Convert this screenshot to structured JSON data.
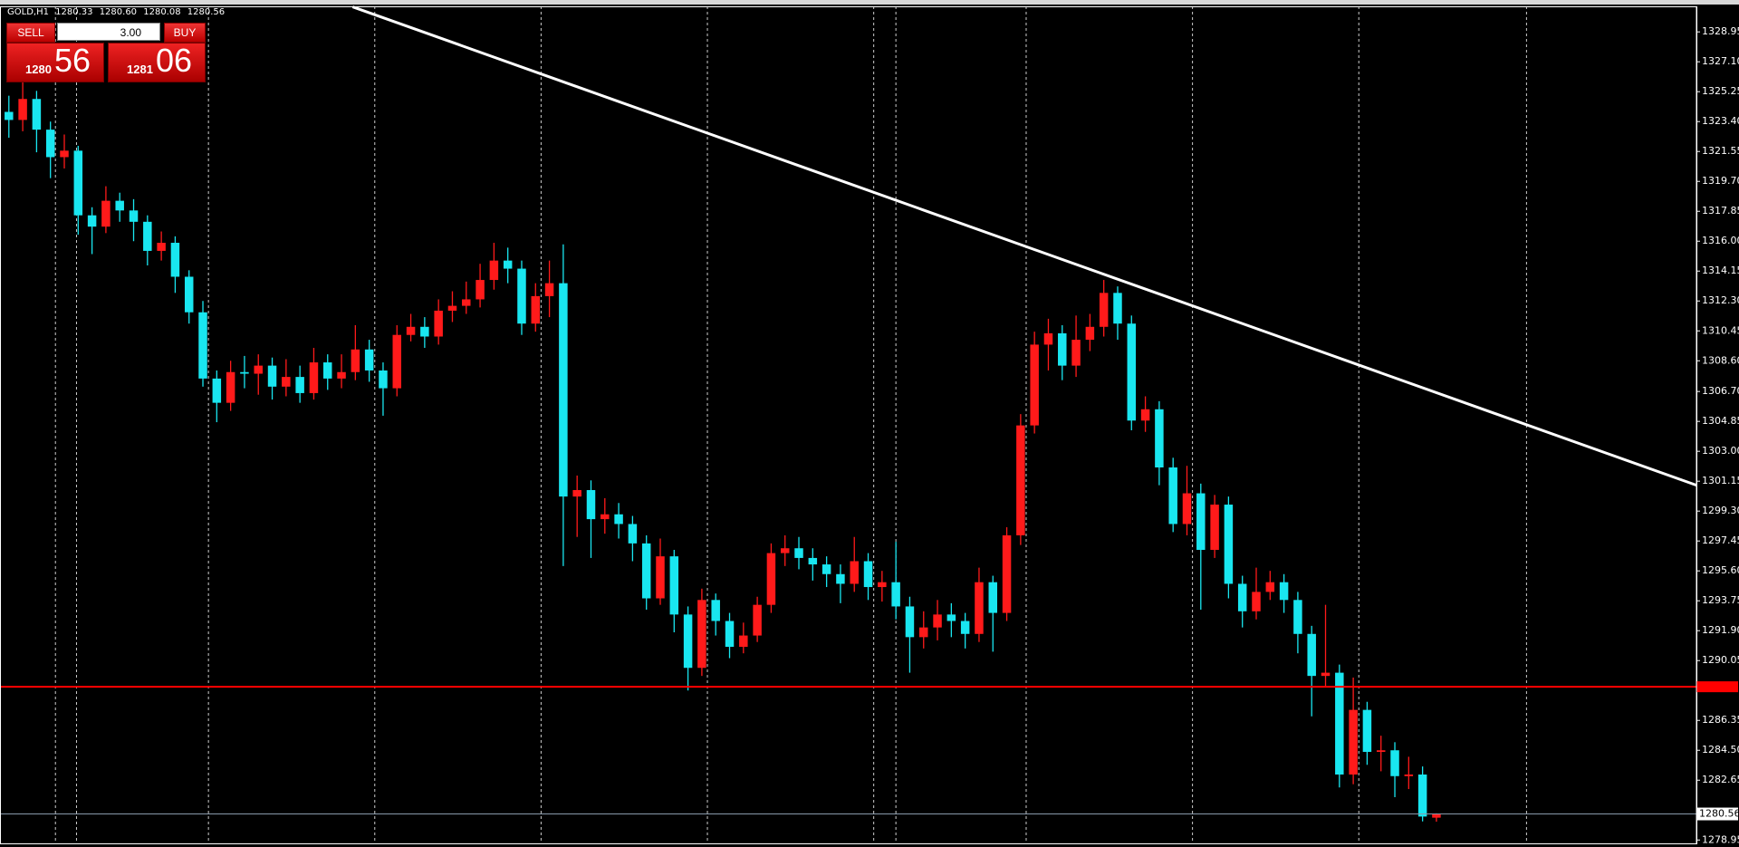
{
  "chart_data": {
    "type": "candlestick",
    "symbol": "GOLD,H1",
    "ohlc_text": [
      "1280.33",
      "1280.60",
      "1280.08",
      "1280.56"
    ],
    "trade_panel": {
      "sell": "SELL",
      "buy": "BUY",
      "lots": "3.00",
      "bid_big": "1280",
      "bid_small": "56",
      "ask_big": "1281",
      "ask_small": "06"
    },
    "up_color": "#ff1a1a",
    "down_color": "#19e6f0",
    "xlim": [
      -0.64,
      121.76
    ],
    "ylim": [
      1278.74,
      1330.53
    ],
    "yticks": [
      1328.95,
      {
        "value": 1327.1,
        "label": "1327.10"
      },
      1325.25,
      {
        "value": 1323.4,
        "label": "1323.40"
      },
      1321.55,
      {
        "value": 1319.7,
        "label": "1319.70"
      },
      1317.85,
      {
        "value": 1316,
        "label": "1316.00"
      },
      1314.15,
      {
        "value": 1312.3,
        "label": "1312.30"
      },
      1310.45,
      {
        "value": 1308.6,
        "label": "1308.60"
      },
      {
        "value": 1306.7,
        "label": "1306.70"
      },
      1304.85,
      {
        "value": 1303,
        "label": "1303.00"
      },
      1301.15,
      {
        "value": 1299.3,
        "label": "1299.30"
      },
      1297.45,
      {
        "value": 1295.6,
        "label": "1295.60"
      },
      1293.75,
      {
        "value": 1291.9,
        "label": "1291.90"
      },
      1290.05,
      1286.35,
      {
        "value": 1284.5,
        "label": "1284.50"
      },
      1282.65,
      1278.95
    ],
    "separators": [
      3.36,
      4.88,
      14.4,
      26.4,
      38.4,
      50.4,
      62.4,
      64.0,
      73.4,
      85.4,
      97.4,
      109.5
    ],
    "trendline": [
      {
        "x": 24.8,
        "y": 1330.5
      },
      {
        "x": 121.76,
        "y": 1300.9
      }
    ],
    "level_line": 1288.43,
    "bid_line": 1280.56,
    "candles": [
      [
        1324.0,
        1325.0,
        1322.4,
        1323.5
      ],
      [
        1323.5,
        1326.1,
        1322.8,
        1324.8
      ],
      [
        1324.8,
        1325.3,
        1321.5,
        1322.9
      ],
      [
        1322.9,
        1323.4,
        1319.9,
        1321.2
      ],
      [
        1321.2,
        1322.6,
        1320.5,
        1321.6
      ],
      [
        1321.6,
        1321.9,
        1316.4,
        1317.6
      ],
      [
        1317.6,
        1318.1,
        1315.2,
        1316.9
      ],
      [
        1316.9,
        1319.4,
        1316.5,
        1318.5
      ],
      [
        1318.5,
        1319.0,
        1317.2,
        1317.9
      ],
      [
        1317.9,
        1318.6,
        1316.0,
        1317.2
      ],
      [
        1317.2,
        1317.6,
        1314.5,
        1315.4
      ],
      [
        1315.4,
        1316.6,
        1314.8,
        1315.9
      ],
      [
        1315.9,
        1316.3,
        1312.8,
        1313.8
      ],
      [
        1313.8,
        1314.2,
        1310.9,
        1311.6
      ],
      [
        1311.6,
        1312.3,
        1307.0,
        1307.5
      ],
      [
        1307.5,
        1308.0,
        1304.8,
        1306.0
      ],
      [
        1306.0,
        1308.6,
        1305.5,
        1307.9
      ],
      [
        1307.9,
        1308.9,
        1306.9,
        1307.8
      ],
      [
        1307.8,
        1309.0,
        1306.5,
        1308.3
      ],
      [
        1308.3,
        1308.8,
        1306.2,
        1307.0
      ],
      [
        1307.0,
        1308.7,
        1306.4,
        1307.6
      ],
      [
        1307.6,
        1308.3,
        1306.0,
        1306.6
      ],
      [
        1306.6,
        1309.4,
        1306.2,
        1308.5
      ],
      [
        1308.5,
        1309.0,
        1306.8,
        1307.5
      ],
      [
        1307.5,
        1309.0,
        1306.9,
        1307.9
      ],
      [
        1307.9,
        1310.8,
        1307.4,
        1309.3
      ],
      [
        1309.3,
        1309.9,
        1307.3,
        1308.0
      ],
      [
        1308.0,
        1308.5,
        1305.2,
        1306.9
      ],
      [
        1306.9,
        1310.8,
        1306.4,
        1310.2
      ],
      [
        1310.2,
        1311.5,
        1309.8,
        1310.7
      ],
      [
        1310.7,
        1311.3,
        1309.4,
        1310.1
      ],
      [
        1310.1,
        1312.4,
        1309.6,
        1311.7
      ],
      [
        1311.7,
        1312.9,
        1311.0,
        1312.0
      ],
      [
        1312.0,
        1313.5,
        1311.5,
        1312.4
      ],
      [
        1312.4,
        1314.6,
        1311.9,
        1313.6
      ],
      [
        1313.6,
        1315.9,
        1313.0,
        1314.8
      ],
      [
        1314.8,
        1315.6,
        1313.4,
        1314.3
      ],
      [
        1314.3,
        1314.8,
        1310.2,
        1310.9
      ],
      [
        1310.9,
        1313.4,
        1310.4,
        1312.6
      ],
      [
        1312.6,
        1314.8,
        1311.3,
        1313.4
      ],
      [
        1313.4,
        1315.8,
        1295.9,
        1300.2
      ],
      [
        1300.2,
        1301.5,
        1297.7,
        1300.6
      ],
      [
        1300.6,
        1301.2,
        1296.4,
        1298.8
      ],
      [
        1298.8,
        1300.1,
        1297.9,
        1299.1
      ],
      [
        1299.1,
        1299.8,
        1297.6,
        1298.5
      ],
      [
        1298.5,
        1299.0,
        1296.2,
        1297.3
      ],
      [
        1297.3,
        1297.8,
        1293.2,
        1293.9
      ],
      [
        1293.9,
        1297.6,
        1293.5,
        1296.5
      ],
      [
        1296.5,
        1296.9,
        1291.8,
        1292.9
      ],
      [
        1292.9,
        1293.4,
        1288.2,
        1289.6
      ],
      [
        1289.6,
        1294.5,
        1289.1,
        1293.8
      ],
      [
        1293.8,
        1294.2,
        1291.6,
        1292.5
      ],
      [
        1292.5,
        1293.0,
        1290.2,
        1290.9
      ],
      [
        1290.9,
        1292.4,
        1290.5,
        1291.6
      ],
      [
        1291.6,
        1294.0,
        1291.2,
        1293.5
      ],
      [
        1293.5,
        1297.3,
        1293.0,
        1296.7
      ],
      [
        1296.7,
        1297.8,
        1295.9,
        1297.0
      ],
      [
        1297.0,
        1297.7,
        1295.7,
        1296.4
      ],
      [
        1296.4,
        1297.0,
        1295.0,
        1296.0
      ],
      [
        1296.0,
        1296.5,
        1294.6,
        1295.4
      ],
      [
        1295.4,
        1296.0,
        1293.6,
        1294.8
      ],
      [
        1294.8,
        1297.7,
        1294.3,
        1296.2
      ],
      [
        1296.2,
        1296.7,
        1293.8,
        1294.6
      ],
      [
        1294.6,
        1295.6,
        1293.7,
        1294.9
      ],
      [
        1294.9,
        1297.4,
        1292.6,
        1293.4
      ],
      [
        1293.4,
        1294.0,
        1289.3,
        1291.5
      ],
      [
        1291.5,
        1293.1,
        1290.8,
        1292.1
      ],
      [
        1292.1,
        1293.8,
        1291.3,
        1292.9
      ],
      [
        1292.9,
        1293.6,
        1291.5,
        1292.5
      ],
      [
        1292.5,
        1293.0,
        1290.8,
        1291.7
      ],
      [
        1291.7,
        1295.8,
        1291.2,
        1294.9
      ],
      [
        1294.9,
        1295.3,
        1290.6,
        1293.0
      ],
      [
        1293.0,
        1298.3,
        1292.5,
        1297.8
      ],
      [
        1297.8,
        1305.3,
        1297.2,
        1304.6
      ],
      [
        1304.6,
        1310.4,
        1304.1,
        1309.6
      ],
      [
        1309.6,
        1311.2,
        1308.0,
        1310.3
      ],
      [
        1310.3,
        1310.8,
        1307.4,
        1308.3
      ],
      [
        1308.3,
        1311.4,
        1307.6,
        1309.9
      ],
      [
        1309.9,
        1311.5,
        1309.2,
        1310.7
      ],
      [
        1310.7,
        1313.6,
        1310.1,
        1312.8
      ],
      [
        1312.8,
        1313.2,
        1309.9,
        1310.9
      ],
      [
        1310.9,
        1311.4,
        1304.3,
        1304.9
      ],
      [
        1304.9,
        1306.4,
        1304.2,
        1305.6
      ],
      [
        1305.6,
        1306.1,
        1300.9,
        1302.0
      ],
      [
        1302.0,
        1302.6,
        1298.0,
        1298.5
      ],
      [
        1298.5,
        1302.1,
        1297.8,
        1300.4
      ],
      [
        1300.4,
        1301.0,
        1293.2,
        1296.9
      ],
      [
        1296.9,
        1300.3,
        1296.4,
        1299.7
      ],
      [
        1299.7,
        1300.2,
        1293.9,
        1294.8
      ],
      [
        1294.8,
        1295.3,
        1292.1,
        1293.1
      ],
      [
        1293.1,
        1295.8,
        1292.6,
        1294.3
      ],
      [
        1294.3,
        1295.6,
        1293.8,
        1294.9
      ],
      [
        1294.9,
        1295.4,
        1293.0,
        1293.8
      ],
      [
        1293.8,
        1294.3,
        1290.5,
        1291.7
      ],
      [
        1291.7,
        1292.2,
        1286.6,
        1289.1
      ],
      [
        1289.1,
        1293.5,
        1288.4,
        1289.3
      ],
      [
        1289.3,
        1289.8,
        1282.2,
        1283.0
      ],
      [
        1283.0,
        1289.0,
        1282.4,
        1287.0
      ],
      [
        1287.0,
        1287.5,
        1283.6,
        1284.4
      ],
      [
        1284.4,
        1285.4,
        1283.2,
        1284.5
      ],
      [
        1284.5,
        1285.0,
        1281.6,
        1282.9
      ],
      [
        1282.9,
        1284.1,
        1282.1,
        1283.0
      ],
      [
        1283.0,
        1283.5,
        1280.1,
        1280.4
      ],
      [
        1280.33,
        1280.6,
        1280.08,
        1280.56
      ]
    ]
  }
}
